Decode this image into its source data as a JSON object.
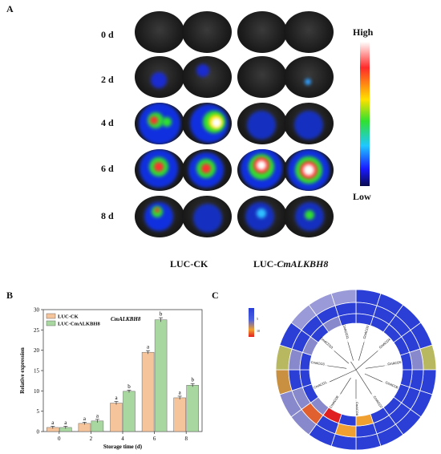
{
  "panelA": {
    "letter": "A",
    "days": [
      "0 d",
      "2 d",
      "4 d",
      "6 d",
      "8 d"
    ],
    "scale_high": "High",
    "scale_low": "Low",
    "col_ck": "LUC-CK",
    "col_alk_prefix": "LUC-",
    "col_alk_gene": "CmALKBH8"
  },
  "panelB": {
    "letter": "B"
  },
  "panelC": {
    "letter": "C",
    "legend_ticks": [
      "5",
      "10"
    ],
    "tree_labels": [
      "CmACO2",
      "CmACO4",
      "CmACO5",
      "CmACO6",
      "CmACO7",
      "CmACO8",
      "CmACO9",
      "CmACO1",
      "CmACO3",
      "CmACO10",
      "CmACO11"
    ]
  },
  "chart_data": {
    "type": "bar",
    "title": "CmALKBH8",
    "xlabel": "Storage time (d)",
    "ylabel": "Relative expression",
    "ylim": [
      0,
      30
    ],
    "yticks": [
      0,
      5,
      10,
      15,
      20,
      25,
      30
    ],
    "categories": [
      "0",
      "2",
      "4",
      "6",
      "8"
    ],
    "series": [
      {
        "name": "LUC-CK",
        "values": [
          1.0,
          2.0,
          7.0,
          19.5,
          8.3
        ],
        "errors": [
          0.3,
          0.3,
          0.4,
          0.4,
          0.4
        ],
        "letters": [
          "a",
          "a",
          "a",
          "a",
          "a"
        ],
        "color": "#f6c49a"
      },
      {
        "name": "LUC-CmALKBH8",
        "values": [
          1.0,
          2.6,
          9.9,
          27.5,
          11.4
        ],
        "errors": [
          0.3,
          0.4,
          0.3,
          0.5,
          0.4
        ],
        "letters": [
          "a",
          "a",
          "b",
          "b",
          "b"
        ],
        "color": "#a8d8a0"
      }
    ],
    "legend_position": "top-left"
  },
  "colors": {
    "ck_bar": "#f6c49a",
    "alk_bar": "#a8d8a0",
    "heat_low": "#2b3fd6",
    "heat_mid": "#f0a030",
    "heat_high": "#e02020"
  }
}
